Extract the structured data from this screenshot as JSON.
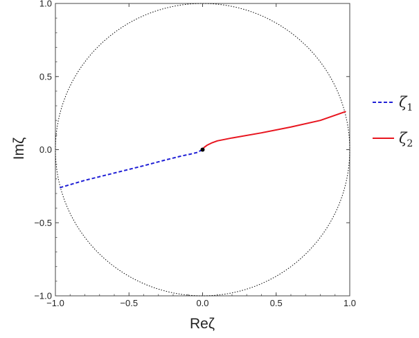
{
  "chart_data": {
    "type": "line",
    "xlabel": "Reζ",
    "ylabel": "Imζ",
    "xlim": [
      -1.0,
      1.0
    ],
    "ylim": [
      -1.0,
      1.0
    ],
    "x_ticks": [
      "−1.0",
      "−0.5",
      "0.0",
      "0.5",
      "1.0"
    ],
    "y_ticks": [
      "−1.0",
      "−0.5",
      "0.0",
      "0.5",
      "1.0"
    ],
    "grid": false,
    "legend_position": "right",
    "unit_circle": {
      "center": [
        0,
        0
      ],
      "radius": 1,
      "style": "dotted",
      "color": "#000000"
    },
    "origin_point": {
      "x": 0,
      "y": 0,
      "color": "#000000"
    },
    "series": [
      {
        "name": "ζ",
        "name_subscript": "1",
        "style": "dashed",
        "color": "#1f1fd6",
        "x": [
          -0.97,
          -0.8,
          -0.6,
          -0.4,
          -0.25,
          -0.15,
          -0.08,
          -0.04,
          -0.01,
          0.0
        ],
        "y": [
          -0.26,
          -0.21,
          -0.16,
          -0.11,
          -0.07,
          -0.045,
          -0.03,
          -0.02,
          -0.005,
          0.0
        ]
      },
      {
        "name": "ζ",
        "name_subscript": "2",
        "style": "solid",
        "color": "#e8141e",
        "x": [
          0.0,
          0.01,
          0.03,
          0.06,
          0.1,
          0.2,
          0.4,
          0.6,
          0.8,
          0.97
        ],
        "y": [
          0.0,
          0.015,
          0.03,
          0.045,
          0.06,
          0.08,
          0.115,
          0.155,
          0.2,
          0.26
        ]
      }
    ]
  }
}
